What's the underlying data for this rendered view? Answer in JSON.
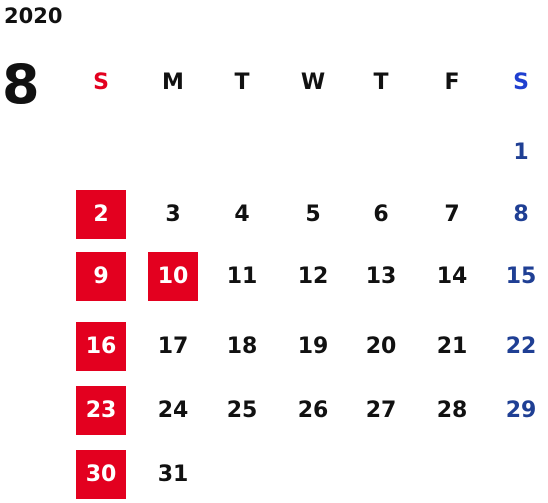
{
  "calendar": {
    "year": "2020",
    "month": "8",
    "weekdays": [
      "S",
      "M",
      "T",
      "W",
      "T",
      "F",
      "S"
    ],
    "weeks": [
      [
        "",
        "",
        "",
        "",
        "",
        "",
        "1"
      ],
      [
        "2",
        "3",
        "4",
        "5",
        "6",
        "7",
        "8"
      ],
      [
        "9",
        "10",
        "11",
        "12",
        "13",
        "14",
        "15"
      ],
      [
        "16",
        "17",
        "18",
        "19",
        "20",
        "21",
        "22"
      ],
      [
        "23",
        "24",
        "25",
        "26",
        "27",
        "28",
        "29"
      ],
      [
        "30",
        "31",
        "",
        "",
        "",
        "",
        ""
      ]
    ],
    "highlighted_days": [
      "2",
      "9",
      "10",
      "16",
      "23",
      "30"
    ],
    "colors": {
      "sunday_header": "#e3001f",
      "saturday_header": "#1f3fd0",
      "saturday_date": "#1f3f94",
      "holiday_bg": "#e3001f",
      "holiday_text": "#ffffff",
      "default_text": "#111111"
    }
  }
}
